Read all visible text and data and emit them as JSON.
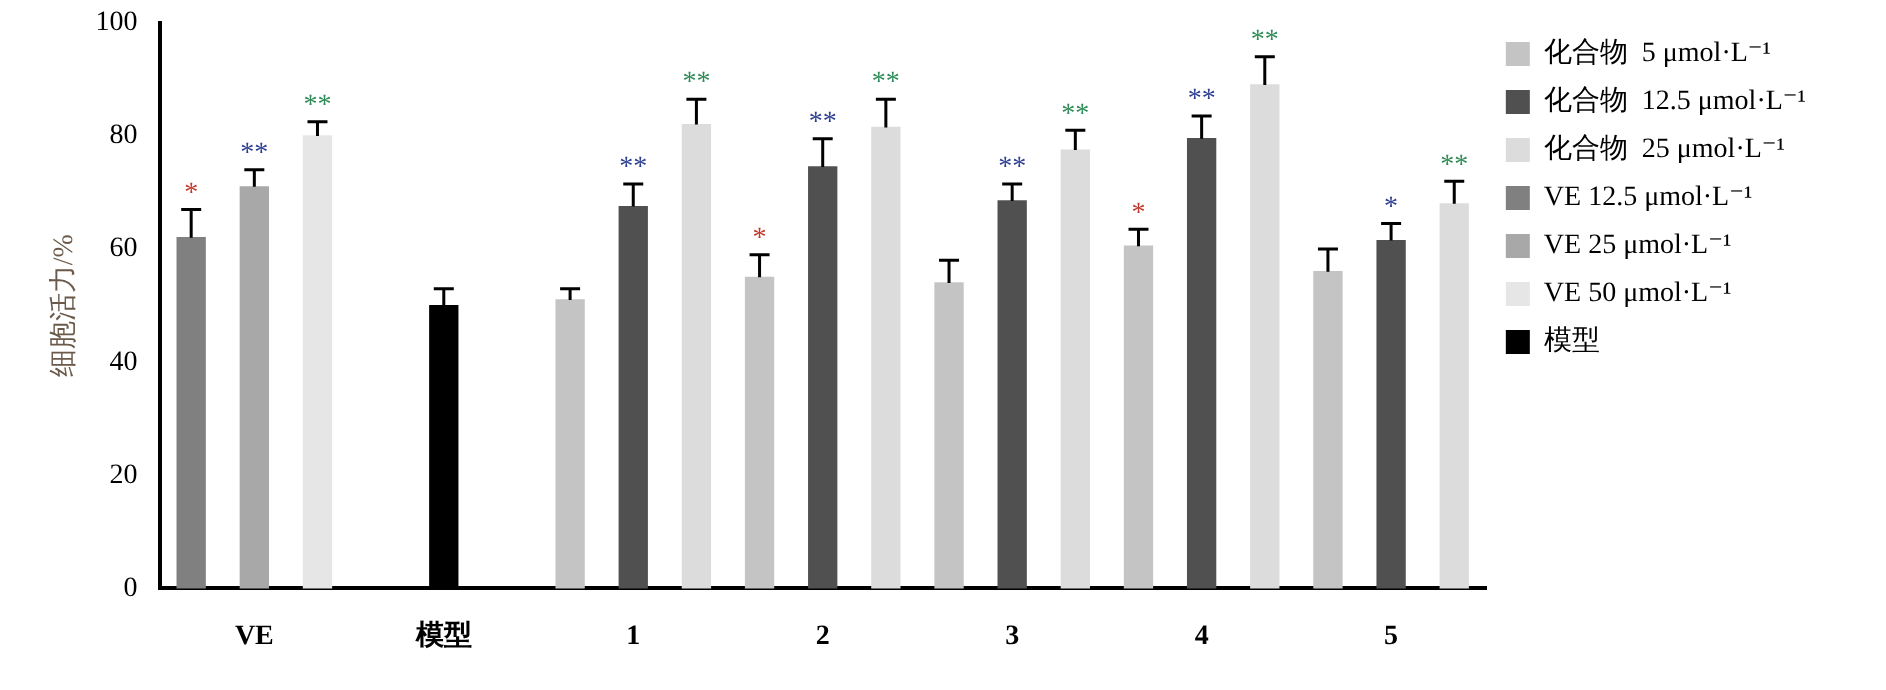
{
  "chart_data": {
    "type": "bar",
    "ylabel": "细胞活力/%",
    "categories": [
      "VE",
      "模型",
      "1",
      "2",
      "3",
      "4",
      "5"
    ],
    "series": [
      {
        "name": "化合物  5 μmol·L⁻¹",
        "color": "#c4c4c4",
        "values": [
          null,
          null,
          51,
          55,
          54,
          60.5,
          56
        ],
        "errors": [
          null,
          null,
          2,
          4,
          4,
          3,
          4
        ],
        "value_labels": [
          null,
          null,
          null,
          "*",
          null,
          "*",
          null
        ]
      },
      {
        "name": "化合物  12.5 μmol·L⁻¹",
        "color": "#505050",
        "values": [
          null,
          null,
          67.5,
          74.5,
          68.5,
          79.5,
          61.5
        ],
        "errors": [
          null,
          null,
          4,
          5,
          3,
          4,
          3
        ],
        "value_labels": [
          null,
          null,
          "**",
          "**",
          "**",
          "**",
          "*"
        ]
      },
      {
        "name": "化合物  25 μmol·L⁻¹",
        "color": "#dcdcdc",
        "values": [
          null,
          null,
          82,
          81.5,
          77.5,
          89,
          68
        ],
        "errors": [
          null,
          null,
          4.5,
          5,
          3.5,
          5,
          4
        ],
        "value_labels": [
          null,
          null,
          "**",
          "**",
          "**",
          "**",
          "**"
        ]
      },
      {
        "name": "VE 12.5 μmol·L⁻¹",
        "color": "#808080",
        "values": [
          62,
          null,
          null,
          null,
          null,
          null,
          null
        ],
        "errors": [
          5,
          null,
          null,
          null,
          null,
          null,
          null
        ],
        "value_labels": [
          "*",
          null,
          null,
          null,
          null,
          null,
          null
        ]
      },
      {
        "name": "VE 25 μmol·L⁻¹",
        "color": "#a8a8a8",
        "values": [
          71,
          null,
          null,
          null,
          null,
          null,
          null
        ],
        "errors": [
          3,
          null,
          null,
          null,
          null,
          null,
          null
        ],
        "value_labels": [
          "**",
          null,
          null,
          null,
          null,
          null,
          null
        ]
      },
      {
        "name": "VE 50 μmol·L⁻¹",
        "color": "#e6e6e6",
        "values": [
          80,
          null,
          null,
          null,
          null,
          null,
          null
        ],
        "errors": [
          2.5,
          null,
          null,
          null,
          null,
          null,
          null
        ],
        "value_labels": [
          "**",
          null,
          null,
          null,
          null,
          null,
          null
        ]
      },
      {
        "name": "模型",
        "color": "#000000",
        "values": [
          null,
          50,
          null,
          null,
          null,
          null,
          null
        ],
        "errors": [
          null,
          3,
          null,
          null,
          null,
          null,
          null
        ]
      }
    ],
    "ylim": [
      0,
      100
    ],
    "yticks": [
      0,
      20,
      40,
      60,
      80,
      100
    ],
    "grid": false,
    "legend": "right"
  }
}
